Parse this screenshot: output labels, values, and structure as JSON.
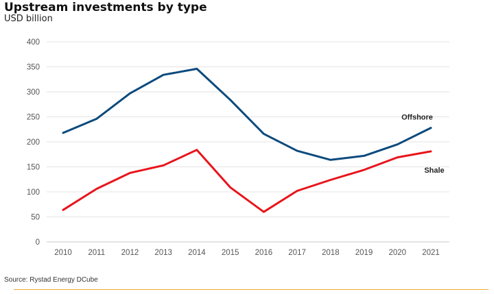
{
  "title": "Upstream investments by type",
  "subtitle": "USD billion",
  "source": "Source: Rystad Energy DCube",
  "colors": {
    "offshore": "#0b4a7d",
    "shale": "#e8141b",
    "grid": "#e3e3e3",
    "footer": "#f0a830"
  },
  "chart_data": {
    "type": "line",
    "title": "Upstream investments by type",
    "ylabel": "USD billion",
    "xlabel": "",
    "ylim": [
      0,
      400
    ],
    "yticks": [
      0,
      50,
      100,
      150,
      200,
      250,
      300,
      350,
      400
    ],
    "grid": true,
    "categories": [
      "2010",
      "2011",
      "2012",
      "2013",
      "2014",
      "2015",
      "2016",
      "2017",
      "2018",
      "2019",
      "2020",
      "2021"
    ],
    "series": [
      {
        "name": "Offshore",
        "color": "#0b4a7d",
        "values": [
          218,
          246,
          297,
          334,
          346,
          284,
          216,
          182,
          164,
          172,
          195,
          228
        ]
      },
      {
        "name": "Shale",
        "color": "#e8141b",
        "values": [
          64,
          106,
          138,
          153,
          184,
          109,
          60,
          102,
          124,
          144,
          169,
          181
        ]
      }
    ]
  }
}
